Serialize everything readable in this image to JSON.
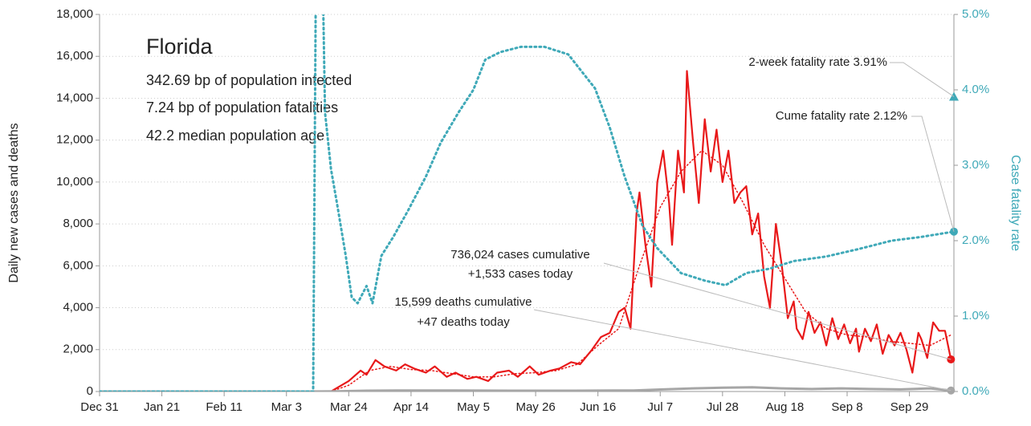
{
  "chart_data": {
    "type": "line",
    "title": "Florida",
    "subtitle_lines": [
      "342.69 bp of population infected",
      "7.24 bp of population fatalities",
      "42.2 median population age"
    ],
    "y_label": "Daily new cases and deaths",
    "y2_label": "Case fatality rate",
    "xlim": [
      0,
      288
    ],
    "xticks": [
      {
        "value": 0,
        "label": "Dec 31"
      },
      {
        "value": 21,
        "label": "Jan 21"
      },
      {
        "value": 42,
        "label": "Feb 11"
      },
      {
        "value": 63,
        "label": "Mar 3"
      },
      {
        "value": 84,
        "label": "Mar 24"
      },
      {
        "value": 105,
        "label": "Apr 14"
      },
      {
        "value": 126,
        "label": "May 5"
      },
      {
        "value": 147,
        "label": "May 26"
      },
      {
        "value": 168,
        "label": "Jun 16"
      },
      {
        "value": 189,
        "label": "Jul 7"
      },
      {
        "value": 210,
        "label": "Jul 28"
      },
      {
        "value": 231,
        "label": "Aug 18"
      },
      {
        "value": 252,
        "label": "Sep 8"
      },
      {
        "value": 273,
        "label": "Sep 29"
      }
    ],
    "ylim": [
      0,
      18000
    ],
    "yticks": [
      0,
      {
        "value": 2000,
        "label": "2,000"
      },
      {
        "value": 4000,
        "label": "4,000"
      },
      {
        "value": 6000,
        "label": "6,000"
      },
      {
        "value": 8000,
        "label": "8,000"
      },
      {
        "value": 10000,
        "label": "10,000"
      },
      {
        "value": 12000,
        "label": "12,000"
      },
      {
        "value": 14000,
        "label": "14,000"
      },
      {
        "value": 16000,
        "label": "16,000"
      },
      {
        "value": 18000,
        "label": "18,000"
      }
    ],
    "y2lim": [
      0,
      5
    ],
    "y2ticks": [
      {
        "value": 0,
        "label": "0.0%"
      },
      {
        "value": 1,
        "label": "1.0%"
      },
      {
        "value": 2,
        "label": "2.0%"
      },
      {
        "value": 3,
        "label": "3.0%"
      },
      {
        "value": 4,
        "label": "4.0%"
      },
      {
        "value": 5,
        "label": "5.0%"
      }
    ],
    "grid": true,
    "series": [
      {
        "name": "Daily new cases",
        "color": "#e8191a",
        "style": "solid",
        "x": [
          0,
          40,
          78,
          84,
          88,
          90,
          93,
          96,
          100,
          103,
          106,
          110,
          113,
          117,
          120,
          124,
          127,
          131,
          134,
          138,
          141,
          145,
          148,
          152,
          155,
          159,
          162,
          166,
          169,
          172,
          175,
          177,
          179,
          181,
          182,
          184,
          186,
          188,
          190,
          192,
          193,
          195,
          197,
          198,
          200,
          202,
          204,
          206,
          208,
          210,
          212,
          214,
          216,
          218,
          220,
          222,
          224,
          226,
          228,
          230,
          232,
          234,
          235,
          237,
          239,
          241,
          243,
          245,
          247,
          249,
          251,
          253,
          255,
          256,
          258,
          260,
          262,
          264,
          266,
          268,
          270,
          272,
          274,
          276,
          277,
          279,
          281,
          283,
          285,
          287
        ],
        "values": [
          0,
          0,
          0,
          500,
          1000,
          800,
          1500,
          1200,
          1000,
          1300,
          1100,
          900,
          1200,
          700,
          900,
          600,
          700,
          500,
          900,
          1000,
          700,
          1200,
          800,
          1000,
          1100,
          1400,
          1300,
          2000,
          2600,
          2800,
          3800,
          4000,
          3000,
          8500,
          9500,
          7000,
          5000,
          10000,
          11500,
          9000,
          7000,
          11500,
          9500,
          15300,
          12000,
          9000,
          13000,
          10500,
          12500,
          10000,
          11500,
          9000,
          9500,
          9800,
          7500,
          8500,
          5500,
          4000,
          8000,
          6000,
          3500,
          4300,
          3000,
          2500,
          3800,
          2800,
          3300,
          2200,
          3500,
          2500,
          3200,
          2300,
          3000,
          1900,
          3000,
          2400,
          3200,
          1800,
          2700,
          2200,
          2800,
          2000,
          900,
          2800,
          2500,
          1600,
          3300,
          2900,
          2900,
          1533
        ]
      },
      {
        "name": "7-day average cases",
        "color": "#e8191a",
        "style": "dotted",
        "x": [
          0,
          78,
          84,
          91,
          98,
          105,
          112,
          119,
          126,
          133,
          140,
          147,
          154,
          161,
          168,
          175,
          182,
          189,
          196,
          203,
          210,
          217,
          224,
          231,
          238,
          245,
          252,
          259,
          266,
          273,
          280,
          287
        ],
        "values": [
          0,
          0,
          300,
          1000,
          1200,
          1050,
          1000,
          850,
          700,
          700,
          850,
          900,
          1000,
          1300,
          2200,
          3000,
          6000,
          8800,
          10500,
          11500,
          10800,
          9000,
          7000,
          5400,
          3800,
          3000,
          2700,
          2600,
          2400,
          2300,
          2200,
          2700
        ]
      },
      {
        "name": "Daily new deaths",
        "color": "#a6a6a6",
        "style": "solid",
        "x": [
          0,
          70,
          80,
          90,
          100,
          120,
          140,
          160,
          180,
          190,
          200,
          210,
          220,
          230,
          240,
          250,
          260,
          270,
          280,
          287
        ],
        "values": [
          0,
          0,
          10,
          40,
          50,
          50,
          40,
          40,
          50,
          100,
          150,
          180,
          200,
          150,
          120,
          150,
          120,
          100,
          150,
          47
        ]
      },
      {
        "name": "Cume fatality rate",
        "color": "#3fa9b8",
        "style": "dotted",
        "axis": "y2",
        "x": [
          0,
          72,
          73,
          75,
          76,
          78,
          80,
          83,
          85,
          87,
          90,
          92,
          95,
          99,
          104,
          110,
          115,
          121,
          126,
          130,
          135,
          142,
          150,
          158,
          167,
          172,
          177,
          183,
          188,
          196,
          204,
          211,
          218,
          226,
          234,
          245,
          256,
          267,
          277,
          288
        ],
        "values": [
          0,
          0,
          6,
          6,
          3.7,
          2.95,
          2.5,
          1.8,
          1.25,
          1.17,
          1.4,
          1.17,
          1.8,
          2.05,
          2.4,
          2.85,
          3.3,
          3.7,
          4.0,
          4.4,
          4.5,
          4.57,
          4.57,
          4.47,
          4.02,
          3.5,
          2.85,
          2.2,
          1.9,
          1.57,
          1.47,
          1.41,
          1.57,
          1.63,
          1.73,
          1.79,
          1.89,
          2.0,
          2.05,
          2.12
        ]
      }
    ],
    "annotations": [
      {
        "text": "2-week fatality rate 3.91%",
        "value": 3.91,
        "axis": "y2",
        "x": 288
      },
      {
        "text": "Cume fatality rate 2.12%"
      },
      {
        "lines": [
          "736,024 cases cumulative",
          "+1,533 cases today"
        ]
      },
      {
        "lines": [
          "15,599 deaths cumulative",
          "+47 deaths today"
        ]
      }
    ]
  }
}
